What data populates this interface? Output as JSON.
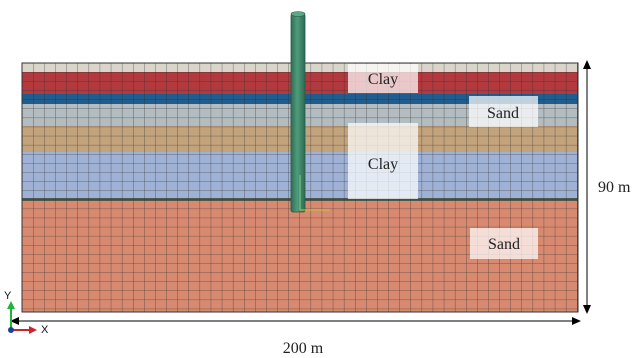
{
  "layers": [
    {
      "name": "top",
      "color": "#d9d6c9"
    },
    {
      "name": "red-clay",
      "color": "#b23a3f"
    },
    {
      "name": "blue-band",
      "color": "#1f5d8e"
    },
    {
      "name": "grey-sand",
      "color": "#b3bcc0"
    },
    {
      "name": "tan",
      "color": "#c2a37c"
    },
    {
      "name": "lavender-clay",
      "color": "#9fb2d6"
    },
    {
      "name": "dark-divider",
      "color": "#4f5a4e"
    },
    {
      "name": "salmon-sand",
      "color": "#d88a70"
    }
  ],
  "labels": {
    "clay_top": "Clay",
    "sand_upper": "Sand",
    "clay_mid": "Clay",
    "sand_lower": "Sand"
  },
  "dimensions": {
    "height": "90 m",
    "width": "200 m"
  },
  "axes": {
    "y": "Y",
    "x": "X"
  },
  "pile": {
    "color": "#3e8a6b"
  }
}
